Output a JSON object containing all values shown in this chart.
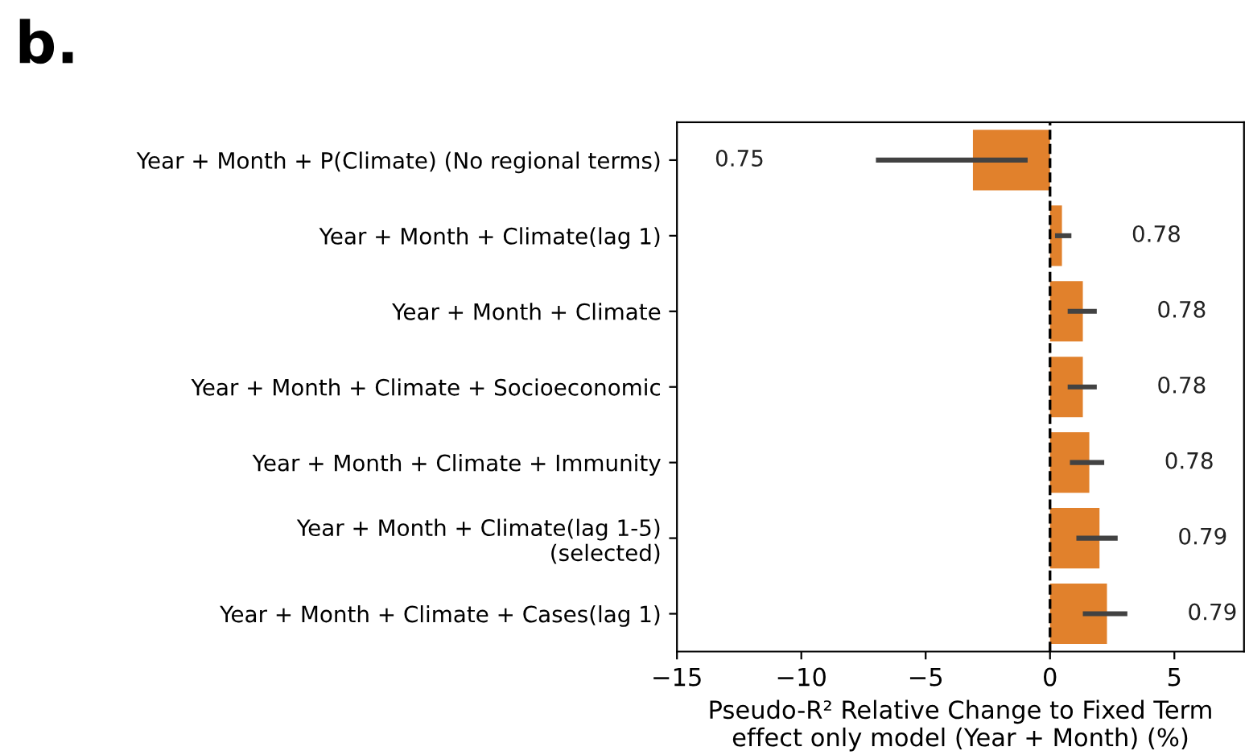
{
  "chart_data": {
    "type": "bar",
    "orientation": "horizontal",
    "title": "b.",
    "xlabel": "Pseudo-R² Relative Change to Fixed Term\neffect only model (Year + Month) (%)",
    "categories": [
      "Year + Month + P(Climate) (No regional terms)",
      "Year + Month + Climate(lag 1)",
      "Year + Month + Climate",
      "Year + Month + Climate + Socioeconomic",
      "Year + Month + Climate + Immunity",
      "Year + Month + Climate(lag 1-5)\n(selected)",
      "Year + Month + Climate + Cases(lag 1)"
    ],
    "values": [
      -3.1,
      0.48,
      1.32,
      1.32,
      1.58,
      1.99,
      2.29
    ],
    "errors": [
      [
        -7.0,
        -0.9
      ],
      [
        0.2,
        0.86
      ],
      [
        0.71,
        1.88
      ],
      [
        0.71,
        1.88
      ],
      [
        0.8,
        2.18
      ],
      [
        1.06,
        2.72
      ],
      [
        1.32,
        3.11
      ]
    ],
    "annotations": [
      "0.75",
      "0.78",
      "0.78",
      "0.78",
      "0.78",
      "0.79",
      "0.79"
    ],
    "color": "#e1812c",
    "xlim": [
      -15,
      7.8
    ],
    "xticks": [
      -15,
      -10,
      -5,
      0,
      5
    ],
    "ref_lines": [
      {
        "axis": "x",
        "value": 0,
        "color": "#000000",
        "line_style": "dashed"
      }
    ],
    "grid": false,
    "legend": false
  }
}
